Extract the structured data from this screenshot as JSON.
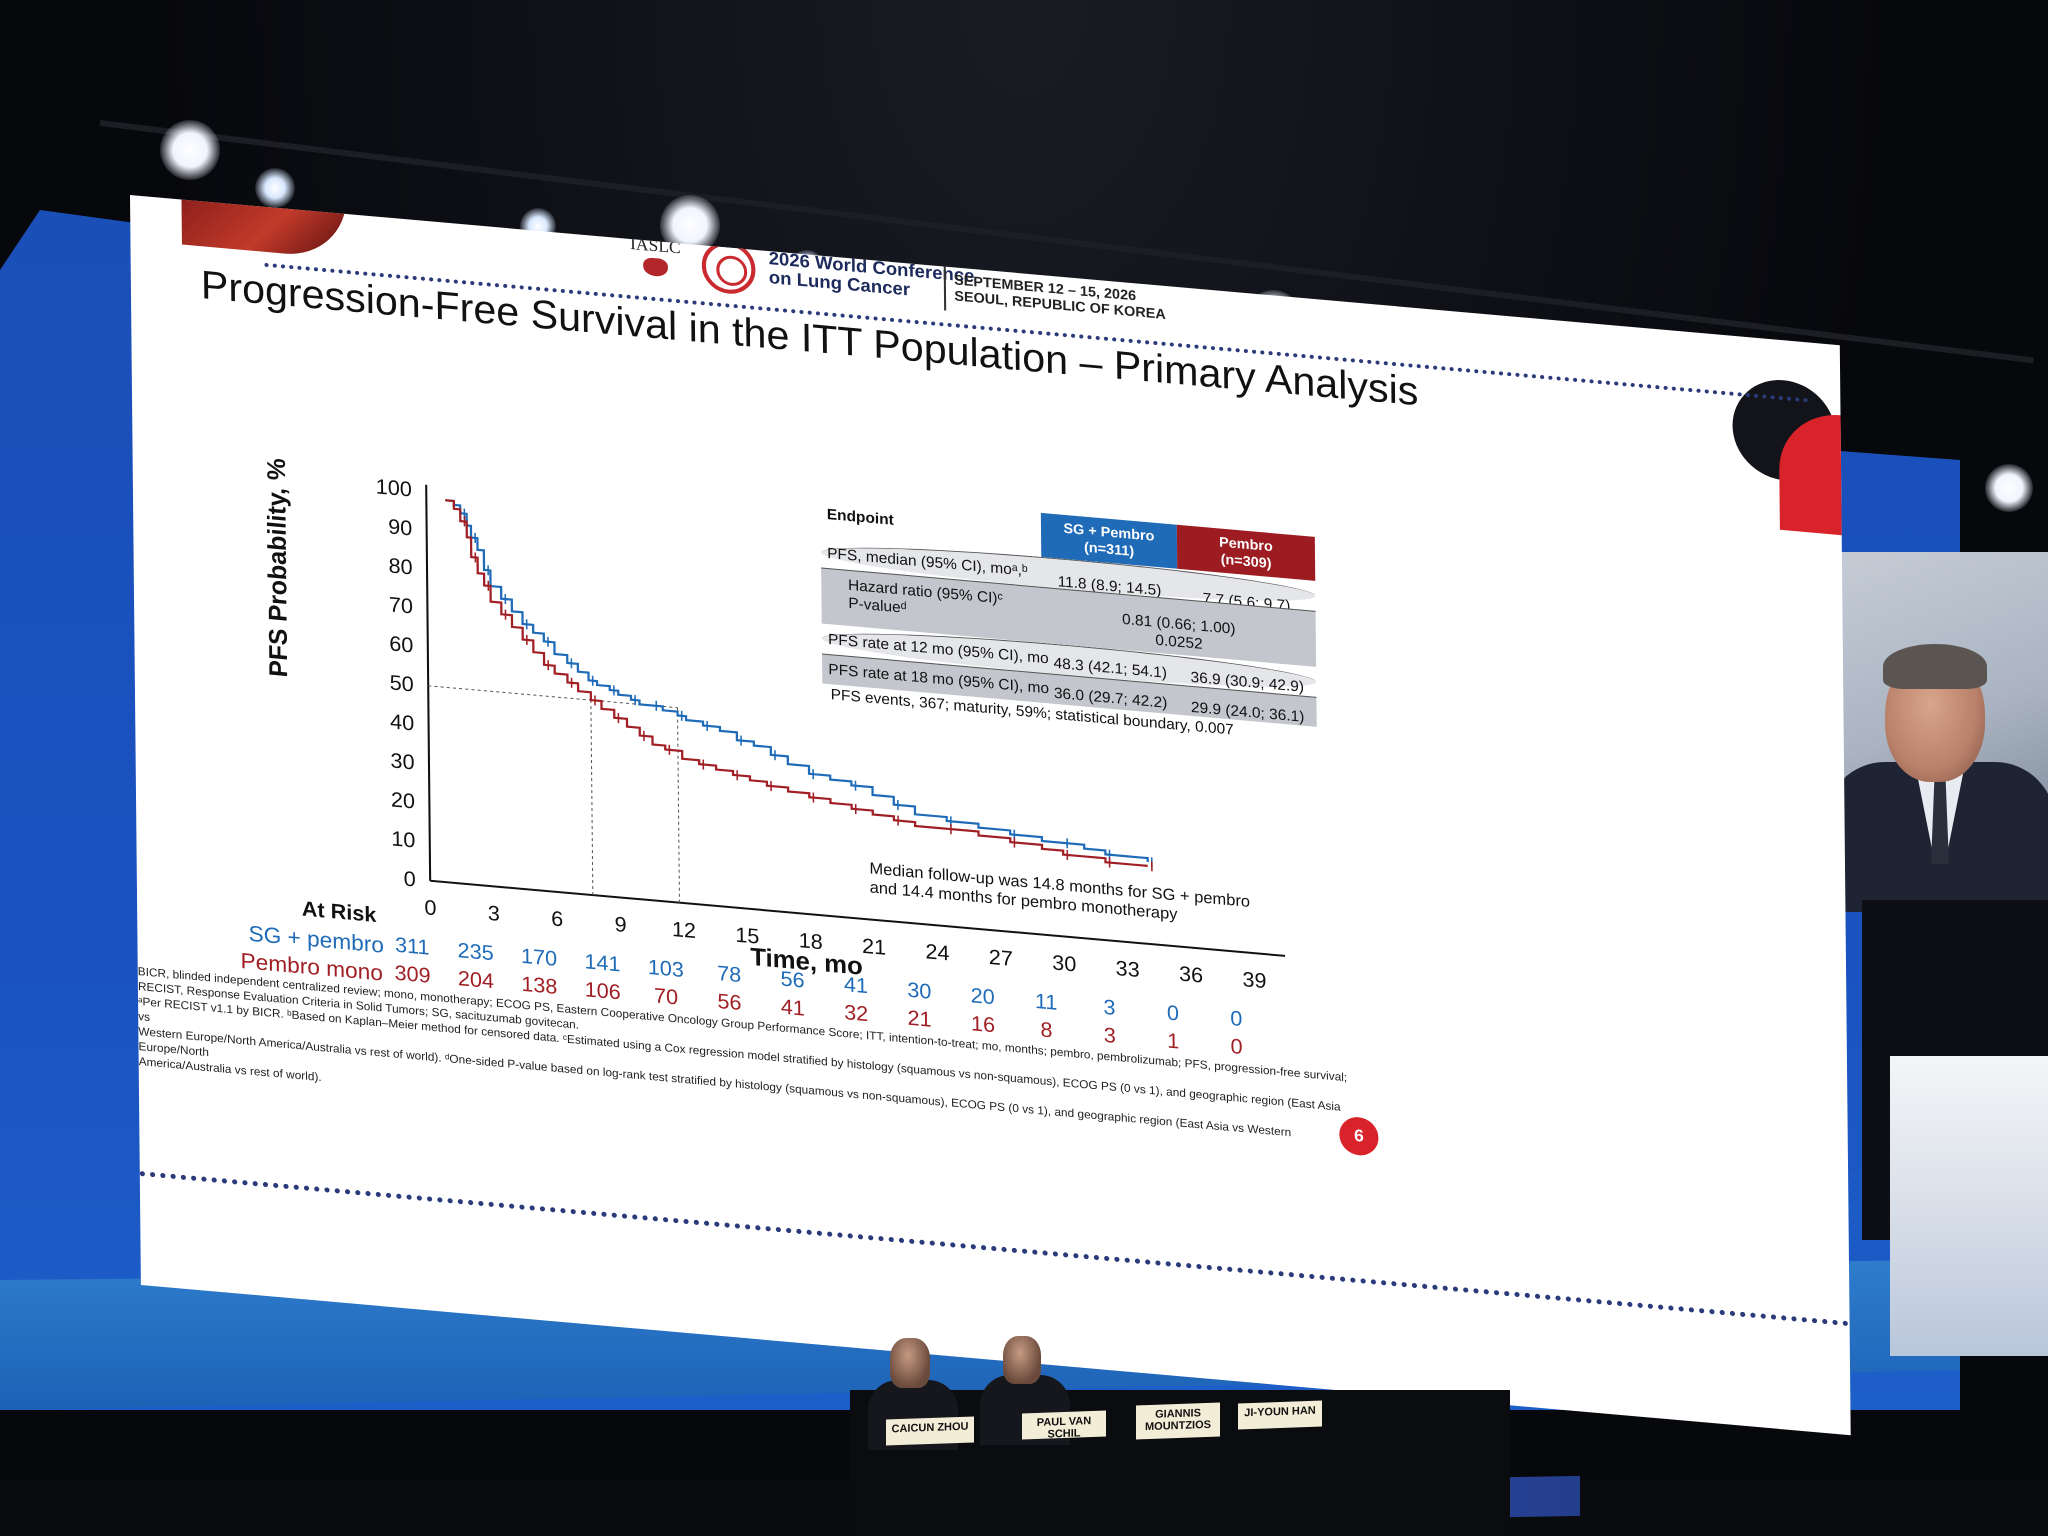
{
  "conference": {
    "org": "IASLC",
    "name": "2026 World Conference\non Lung Cancer",
    "dates": "SEPTEMBER 12 – 15, 2026\nSEOUL, REPUBLIC OF KOREA"
  },
  "slide": {
    "title": "Progression-Free Survival in the ITT Population – Primary Analysis",
    "number": "6",
    "followup_note": "Median follow-up was 14.8 months for SG + pembro\nand 14.4 months for pembro monotherapy",
    "footnotes": [
      "BICR, blinded independent centralized review; mono, monotherapy; ECOG PS, Eastern Cooperative Oncology Group Performance Score; ITT, intention-to-treat; mo, months; pembro, pembrolizumab; PFS, progression-free survival;",
      "RECIST, Response Evaluation Criteria in Solid Tumors; SG, sacituzumab govitecan.",
      "ᵃPer RECIST v1.1 by BICR. ᵇBased on Kaplan–Meier method  for censored data. ᶜEstimated using a Cox regression model stratified by histology (squamous vs non-squamous), ECOG PS (0 vs 1), and geographic region (East Asia vs",
      "Western Europe/North America/Australia vs rest of world). ᵈOne-sided P-value based on log-rank test stratified by histology (squamous vs non-squamous), ECOG PS (0 vs 1), and geographic region (East Asia vs Western Europe/North",
      "America/Australia vs rest of world)."
    ]
  },
  "table": {
    "header_endpoint": "Endpoint",
    "header_sg": "SG + Pembro\n(n=311)",
    "header_pembro": "Pembro\n(n=309)",
    "rows": {
      "median_label": "PFS, median (95% CI), moᵃ,ᵇ",
      "median_sg": "11.8 (8.9; 14.5)",
      "median_pe": "7.7 (5.6; 9.7)",
      "hr_label": "Hazard ratio (95% CI)ᶜ",
      "pv_label": "P-valueᵈ",
      "hr_value": "0.81 (0.66; 1.00)",
      "pv_value": "0.0252",
      "r12_label": "PFS rate at 12 mo (95% CI), mo",
      "r12_sg": "48.3 (42.1; 54.1)",
      "r12_pe": "36.9 (30.9; 42.9)",
      "r18_label": "PFS rate at 18 mo (95% CI), mo",
      "r18_sg": "36.0 (29.7; 42.2)",
      "r18_pe": "29.9 (24.0; 36.1)"
    },
    "events_note": "PFS events, 367; maturity, 59%; statistical boundary, 0.007"
  },
  "colors": {
    "sg": "#1f6bb8",
    "pembro": "#a01f24"
  },
  "chart_data": {
    "type": "line",
    "title": "Progression-Free Survival in the ITT Population – Primary Analysis",
    "xlabel": "Time, mo",
    "ylabel": "PFS Probability, %",
    "xlim": [
      0,
      39
    ],
    "ylim": [
      0,
      100
    ],
    "x_ticks": [
      0,
      3,
      6,
      9,
      12,
      15,
      18,
      21,
      24,
      27,
      30,
      33,
      36,
      39
    ],
    "y_ticks": [
      0,
      10,
      20,
      30,
      40,
      50,
      60,
      70,
      80,
      90,
      100
    ],
    "grid": false,
    "median_reference": {
      "y": 50,
      "sg_x": 11.8,
      "pembro_x": 7.7
    },
    "series": [
      {
        "name": "SG + pembro",
        "color": "#1f6bb8",
        "x": [
          0.9,
          1.3,
          1.6,
          1.9,
          2.1,
          2.4,
          2.7,
          3.0,
          3.5,
          4.0,
          4.5,
          5.0,
          5.5,
          6.0,
          6.6,
          7.1,
          7.6,
          8.0,
          8.6,
          9.0,
          9.6,
          10.0,
          10.6,
          11.1,
          11.8,
          12.2,
          13.0,
          13.8,
          14.6,
          15.4,
          16.2,
          17.0,
          18.0,
          19.0,
          20.0,
          21.0,
          22.0,
          23.0,
          24.5,
          26.0,
          27.5,
          29.0,
          30.0,
          31.0,
          32.0,
          33.0,
          34.0
        ],
        "y": [
          98,
          97,
          95,
          92,
          89,
          86,
          81,
          77,
          74,
          71,
          68,
          66,
          64,
          61,
          59,
          57,
          55,
          54,
          53,
          52,
          51,
          50,
          50,
          49,
          48,
          47,
          46,
          45,
          43,
          42,
          40,
          38,
          36,
          35,
          34,
          32,
          30,
          28,
          27,
          26,
          25,
          24,
          24,
          23,
          22,
          22,
          21
        ]
      },
      {
        "name": "Pembro mono",
        "color": "#a01f24",
        "x": [
          0.9,
          1.3,
          1.6,
          1.9,
          2.1,
          2.4,
          2.7,
          3.0,
          3.5,
          4.0,
          4.5,
          5.0,
          5.5,
          6.0,
          6.6,
          7.1,
          7.7,
          8.2,
          8.8,
          9.4,
          10.0,
          10.6,
          11.2,
          12.0,
          12.8,
          13.6,
          14.4,
          15.2,
          16.0,
          17.0,
          18.0,
          19.0,
          20.0,
          21.0,
          22.0,
          23.0,
          24.5,
          26.0,
          27.5,
          29.0,
          30.0,
          31.0,
          32.0,
          33.0,
          34.0
        ],
        "y": [
          98,
          96,
          93,
          89,
          84,
          80,
          77,
          73,
          70,
          67,
          64,
          61,
          58,
          56,
          54,
          52,
          50,
          48,
          46,
          44,
          42,
          40,
          39,
          37,
          36,
          35,
          34,
          33,
          32,
          31,
          30,
          29,
          28,
          27,
          26,
          25,
          25,
          24,
          23,
          22,
          21,
          21,
          20,
          20,
          20
        ]
      }
    ],
    "at_risk": {
      "title": "At Risk",
      "times": [
        0,
        3,
        6,
        9,
        12,
        15,
        18,
        21,
        24,
        27,
        30,
        33,
        36,
        39
      ],
      "sg_label": "SG + pembro",
      "sg": [
        311,
        235,
        170,
        141,
        103,
        78,
        56,
        41,
        30,
        20,
        11,
        3,
        0,
        0
      ],
      "pembro_label": "Pembro mono",
      "pembro": [
        309,
        204,
        138,
        106,
        70,
        56,
        41,
        32,
        21,
        16,
        8,
        3,
        1,
        0
      ]
    }
  },
  "panel": {
    "names": [
      "CAICUN ZHOU",
      "PAUL VAN SCHIL",
      "GIANNIS\nMOUNTZIOS",
      "JI-YOUN HAN"
    ]
  }
}
